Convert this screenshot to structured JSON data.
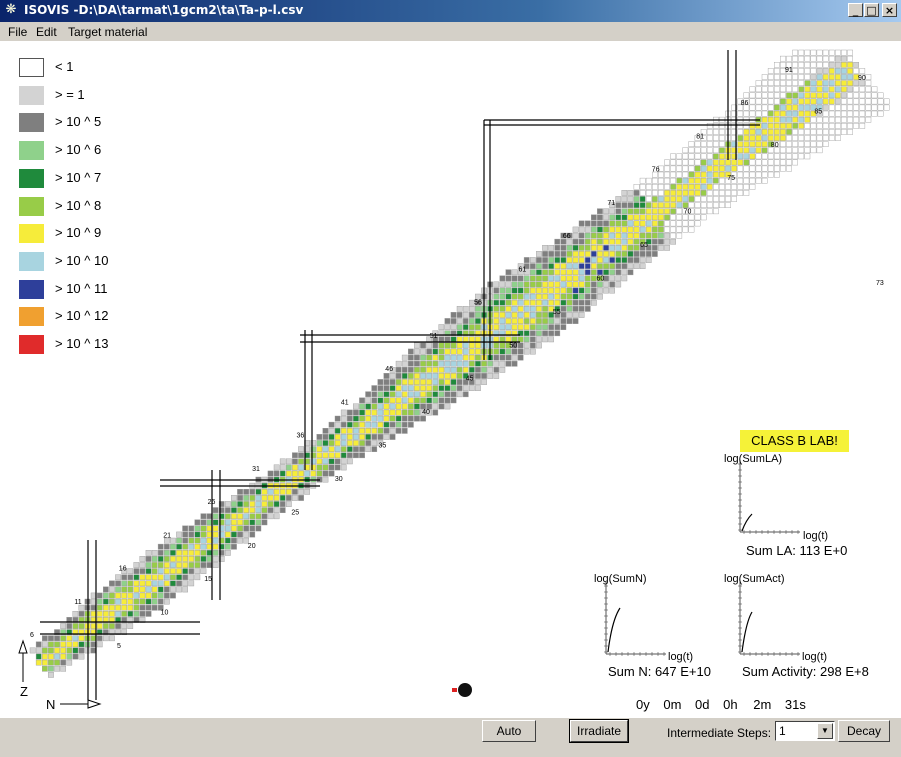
{
  "window": {
    "title": "ISOVIS -D:\\DA\\tarmat\\1gcm2\\ta\\Ta-p-l.csv",
    "controls": [
      "_",
      "□",
      "×"
    ]
  },
  "menu": [
    "File",
    "Edit",
    "Target material"
  ],
  "legend": [
    {
      "label": "< 1",
      "color": "#ffffff"
    },
    {
      "label": "> = 1",
      "color": "#d3d3d3"
    },
    {
      "label": "> 10 ^ 5",
      "color": "#7f7f7f"
    },
    {
      "label": "> 10 ^ 6",
      "color": "#8fd18b"
    },
    {
      "label": "> 10 ^ 7",
      "color": "#1f8a3c"
    },
    {
      "label": "> 10 ^ 8",
      "color": "#98cc48"
    },
    {
      "label": "> 10 ^ 9",
      "color": "#f6ec3a"
    },
    {
      "label": "> 10 ^ 10",
      "color": "#a8d4e0"
    },
    {
      "label": "> 10 ^ 11",
      "color": "#2e3f9a"
    },
    {
      "label": "> 10 ^ 12",
      "color": "#f0a030"
    },
    {
      "label": "> 10 ^ 13",
      "color": "#e02b2b"
    }
  ],
  "chart": {
    "z_labels": [
      "6",
      "11",
      "16",
      "21",
      "26",
      "31",
      "36",
      "41",
      "46",
      "51",
      "56",
      "61",
      "66",
      "71",
      "76",
      "81",
      "86",
      "91"
    ],
    "n_labels": [
      "5",
      "10",
      "15",
      "20",
      "25",
      "30",
      "35",
      "40",
      "45",
      "50",
      "55",
      "60",
      "65",
      "70",
      "75",
      "80",
      "85",
      "90"
    ],
    "side_label": "73",
    "axis_z": "Z",
    "axis_n": "N"
  },
  "banner": "CLASS B LAB!",
  "graphs": {
    "la": {
      "ylabel": "log(SumLA)",
      "xlabel": "log(t)",
      "sum": "Sum LA: 113 E+0"
    },
    "n": {
      "ylabel": "log(SumN)",
      "xlabel": "log(t)",
      "sum": "Sum N: 647 E+10"
    },
    "act": {
      "ylabel": "log(SumAct)",
      "xlabel": "log(t)",
      "sum": "Sum Activity: 298 E+8"
    }
  },
  "time": {
    "y": "0y",
    "m": "0m",
    "d": "0d",
    "h": "0h",
    "min": "2m",
    "s": "31s"
  },
  "controls": {
    "auto": "Auto",
    "irradiate": "Irradiate",
    "steps_label": "Intermediate Steps:",
    "steps_value": "1",
    "decay": "Decay"
  }
}
